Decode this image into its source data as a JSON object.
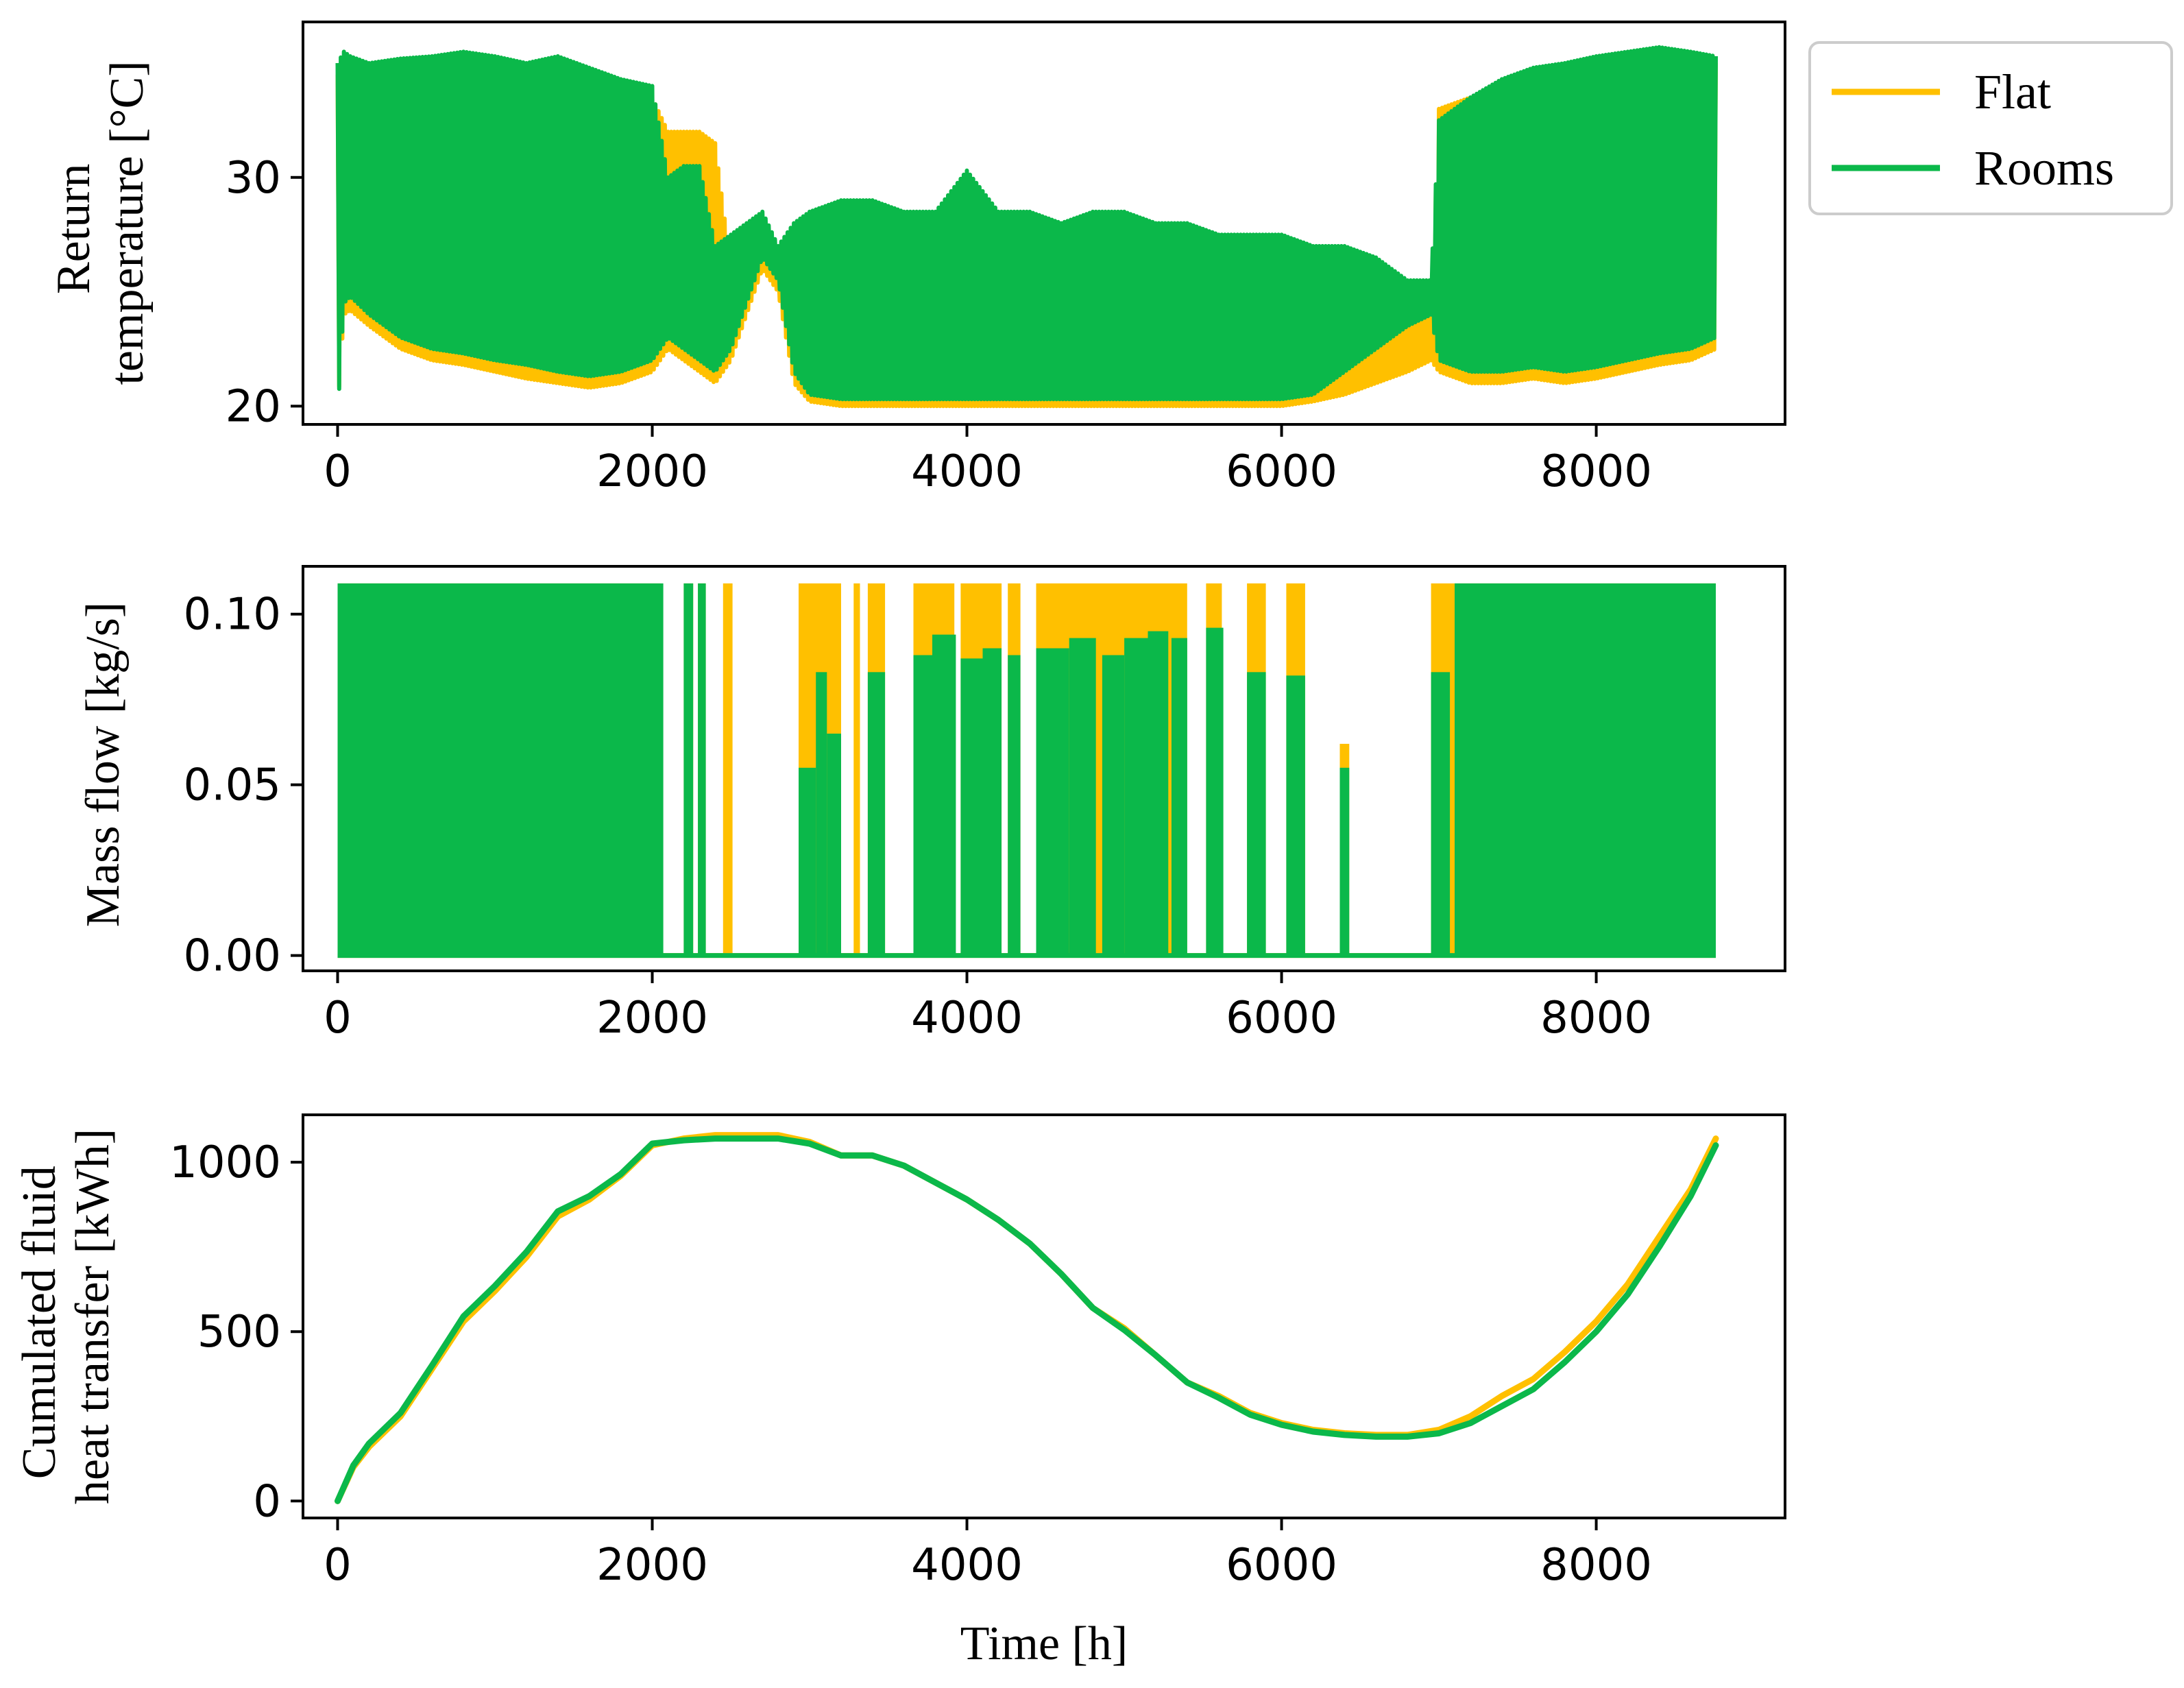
{
  "colors": {
    "flat": "#FFC000",
    "rooms": "#0BB84A",
    "axis": "#000000",
    "legend_border": "#CCCCCC"
  },
  "legend": {
    "items": [
      {
        "label": "Flat",
        "color": "#FFC000"
      },
      {
        "label": "Rooms",
        "color": "#0BB84A"
      }
    ]
  },
  "chart_data": [
    {
      "type": "line",
      "ylabel_lines": [
        "Return",
        "temperature [°C]"
      ],
      "xlabel": "",
      "xlim": [
        -220,
        9200
      ],
      "ylim": [
        19.2,
        36.8
      ],
      "xticks": [
        0,
        2000,
        4000,
        6000,
        8000
      ],
      "xtick_labels": [
        "0",
        "2000",
        "4000",
        "6000",
        "8000"
      ],
      "yticks": [
        20,
        30
      ],
      "ytick_labels": [
        "20",
        "30"
      ],
      "series": [
        {
          "name": "Flat",
          "x": [
            0,
            40,
            80,
            200,
            400,
            600,
            800,
            1000,
            1200,
            1400,
            1600,
            1800,
            2000,
            2100,
            2200,
            2300,
            2400,
            2500,
            2600,
            2700,
            2800,
            2900,
            3000,
            3200,
            3400,
            3600,
            3800,
            4000,
            4200,
            4400,
            4600,
            4800,
            5000,
            5200,
            5400,
            5600,
            5800,
            6000,
            6200,
            6400,
            6600,
            6800,
            6950,
            7000,
            7200,
            7400,
            7600,
            7800,
            8000,
            8200,
            8400,
            8600,
            8760
          ],
          "lower": [
            19.8,
            24.0,
            24.2,
            23.5,
            22.5,
            22.0,
            21.8,
            21.5,
            21.2,
            21.0,
            20.8,
            21.0,
            21.5,
            22.5,
            22.0,
            21.5,
            21.0,
            22.0,
            24.0,
            26.0,
            25.0,
            21.0,
            20.2,
            20.0,
            20.0,
            20.0,
            20.0,
            20.0,
            20.0,
            20.0,
            20.0,
            20.0,
            20.0,
            20.0,
            20.0,
            20.0,
            20.0,
            20.0,
            20.2,
            20.5,
            21.0,
            21.5,
            22.0,
            21.5,
            21.0,
            21.0,
            21.2,
            21.0,
            21.2,
            21.5,
            21.8,
            22.0,
            22.5
          ],
          "upper": [
            34.5,
            35.0,
            35.0,
            34.5,
            34.8,
            35.0,
            35.2,
            35.0,
            34.8,
            35.2,
            34.5,
            34.0,
            33.5,
            32.0,
            32.0,
            32.0,
            31.5,
            26.0,
            26.5,
            27.0,
            26.5,
            27.0,
            27.5,
            28.0,
            28.5,
            28.0,
            28.0,
            28.5,
            27.5,
            27.5,
            27.0,
            27.5,
            27.5,
            27.0,
            27.0,
            26.5,
            26.5,
            26.5,
            26.0,
            25.5,
            24.5,
            24.0,
            24.0,
            33.0,
            33.5,
            34.0,
            34.5,
            34.8,
            35.0,
            35.2,
            35.5,
            35.2,
            35.0
          ]
        },
        {
          "name": "Rooms",
          "x": [
            0,
            40,
            80,
            200,
            400,
            600,
            800,
            1000,
            1200,
            1400,
            1600,
            1800,
            2000,
            2100,
            2200,
            2300,
            2400,
            2500,
            2600,
            2700,
            2800,
            2900,
            3000,
            3200,
            3400,
            3600,
            3800,
            4000,
            4200,
            4400,
            4600,
            4800,
            5000,
            5200,
            5400,
            5600,
            5800,
            6000,
            6200,
            6400,
            6600,
            6800,
            6950,
            7000,
            7200,
            7400,
            7600,
            7800,
            8000,
            8200,
            8400,
            8600,
            8760
          ],
          "lower": [
            19.5,
            24.5,
            24.8,
            24.0,
            23.0,
            22.5,
            22.3,
            22.0,
            21.8,
            21.5,
            21.3,
            21.5,
            22.0,
            23.0,
            22.5,
            22.0,
            21.5,
            22.5,
            24.5,
            26.5,
            25.5,
            21.5,
            20.5,
            20.3,
            20.3,
            20.3,
            20.3,
            20.3,
            20.3,
            20.3,
            20.3,
            20.3,
            20.3,
            20.3,
            20.3,
            20.3,
            20.3,
            20.3,
            20.5,
            21.5,
            22.5,
            23.5,
            24.0,
            22.0,
            21.5,
            21.5,
            21.7,
            21.5,
            21.7,
            22.0,
            22.3,
            22.5,
            23.0
          ],
          "upper": [
            35.0,
            35.5,
            35.3,
            35.0,
            35.2,
            35.3,
            35.5,
            35.3,
            35.0,
            35.3,
            34.8,
            34.3,
            34.0,
            30.0,
            30.5,
            30.5,
            27.0,
            27.5,
            28.0,
            28.5,
            27.0,
            28.0,
            28.5,
            29.0,
            29.0,
            28.5,
            28.5,
            30.3,
            28.5,
            28.5,
            28.0,
            28.5,
            28.5,
            28.0,
            28.0,
            27.5,
            27.5,
            27.5,
            27.0,
            27.0,
            26.5,
            25.5,
            25.5,
            32.5,
            33.5,
            34.3,
            34.8,
            35.0,
            35.3,
            35.5,
            35.7,
            35.5,
            35.3
          ]
        }
      ]
    },
    {
      "type": "area",
      "ylabel_lines": [
        "Mass flow [kg/s]"
      ],
      "xlabel": "",
      "xlim": [
        -220,
        9200
      ],
      "ylim": [
        -0.0045,
        0.114
      ],
      "xticks": [
        0,
        2000,
        4000,
        6000,
        8000
      ],
      "xtick_labels": [
        "0",
        "2000",
        "4000",
        "6000",
        "8000"
      ],
      "yticks": [
        0.0,
        0.05,
        0.1
      ],
      "ytick_labels": [
        "0.00",
        "0.05",
        "0.10"
      ],
      "series": [
        {
          "name": "Flat",
          "bands": [
            [
              0,
              2050,
              0.109
            ],
            [
              2200,
              2260,
              0.109
            ],
            [
              2290,
              2340,
              0.109
            ],
            [
              2450,
              2510,
              0.109
            ],
            [
              2930,
              3200,
              0.109
            ],
            [
              3280,
              3320,
              0.109
            ],
            [
              3370,
              3480,
              0.109
            ],
            [
              3660,
              3920,
              0.109
            ],
            [
              3960,
              4220,
              0.109
            ],
            [
              4260,
              4340,
              0.109
            ],
            [
              4440,
              5400,
              0.109
            ],
            [
              5520,
              5620,
              0.109
            ],
            [
              5780,
              5900,
              0.109
            ],
            [
              6030,
              6150,
              0.109
            ],
            [
              6370,
              6430,
              0.062
            ],
            [
              6950,
              8760,
              0.109
            ]
          ]
        },
        {
          "name": "Rooms",
          "bands": [
            [
              0,
              2070,
              0.109
            ],
            [
              2200,
              2260,
              0.109
            ],
            [
              2290,
              2340,
              0.109
            ],
            [
              2930,
              3040,
              0.055
            ],
            [
              3040,
              3110,
              0.083
            ],
            [
              3110,
              3200,
              0.065
            ],
            [
              3370,
              3480,
              0.083
            ],
            [
              3660,
              3780,
              0.088
            ],
            [
              3780,
              3930,
              0.094
            ],
            [
              3960,
              4100,
              0.087
            ],
            [
              4100,
              4220,
              0.09
            ],
            [
              4260,
              4340,
              0.088
            ],
            [
              4440,
              4650,
              0.09
            ],
            [
              4650,
              4820,
              0.093
            ],
            [
              4860,
              5000,
              0.088
            ],
            [
              5000,
              5150,
              0.093
            ],
            [
              5150,
              5280,
              0.095
            ],
            [
              5300,
              5400,
              0.093
            ],
            [
              5520,
              5630,
              0.096
            ],
            [
              5780,
              5900,
              0.083
            ],
            [
              6030,
              6150,
              0.082
            ],
            [
              6370,
              6430,
              0.055
            ],
            [
              6950,
              7070,
              0.083
            ],
            [
              7100,
              8760,
              0.109
            ]
          ]
        }
      ]
    },
    {
      "type": "line",
      "ylabel_lines": [
        "Cumulated fluid",
        "heat transfer [kWh]"
      ],
      "xlabel": "Time [h]",
      "xlim": [
        -220,
        9200
      ],
      "ylim": [
        -50,
        1140
      ],
      "xticks": [
        0,
        2000,
        4000,
        6000,
        8000
      ],
      "xtick_labels": [
        "0",
        "2000",
        "4000",
        "6000",
        "8000"
      ],
      "yticks": [
        0,
        500,
        1000
      ],
      "ytick_labels": [
        "0",
        "500",
        "1000"
      ],
      "series": [
        {
          "name": "Flat",
          "x": [
            0,
            100,
            200,
            400,
            600,
            800,
            1000,
            1200,
            1400,
            1600,
            1800,
            2000,
            2200,
            2400,
            2600,
            2800,
            3000,
            3200,
            3400,
            3600,
            3800,
            4000,
            4200,
            4400,
            4600,
            4800,
            5000,
            5200,
            5400,
            5600,
            5800,
            6000,
            6200,
            6400,
            6600,
            6800,
            7000,
            7200,
            7400,
            7600,
            7800,
            8000,
            8200,
            8400,
            8600,
            8760
          ],
          "y": [
            0,
            100,
            160,
            250,
            390,
            530,
            620,
            720,
            840,
            890,
            960,
            1050,
            1070,
            1080,
            1080,
            1080,
            1060,
            1020,
            1020,
            990,
            940,
            890,
            830,
            760,
            670,
            570,
            510,
            430,
            350,
            310,
            260,
            230,
            210,
            200,
            195,
            195,
            210,
            250,
            310,
            360,
            440,
            530,
            640,
            780,
            920,
            1070
          ]
        },
        {
          "name": "Rooms",
          "x": [
            0,
            100,
            200,
            400,
            600,
            800,
            1000,
            1200,
            1400,
            1600,
            1800,
            2000,
            2200,
            2400,
            2600,
            2800,
            3000,
            3200,
            3400,
            3600,
            3800,
            4000,
            4200,
            4400,
            4600,
            4800,
            5000,
            5200,
            5400,
            5600,
            5800,
            6000,
            6200,
            6400,
            6600,
            6800,
            7000,
            7200,
            7400,
            7600,
            7800,
            8000,
            8200,
            8400,
            8600,
            8760
          ],
          "y": [
            0,
            105,
            170,
            260,
            400,
            545,
            635,
            735,
            855,
            900,
            965,
            1055,
            1065,
            1070,
            1070,
            1070,
            1055,
            1020,
            1020,
            990,
            940,
            890,
            830,
            760,
            670,
            570,
            505,
            430,
            350,
            305,
            255,
            225,
            205,
            195,
            190,
            190,
            200,
            230,
            280,
            330,
            410,
            500,
            610,
            750,
            900,
            1050
          ]
        }
      ]
    }
  ]
}
